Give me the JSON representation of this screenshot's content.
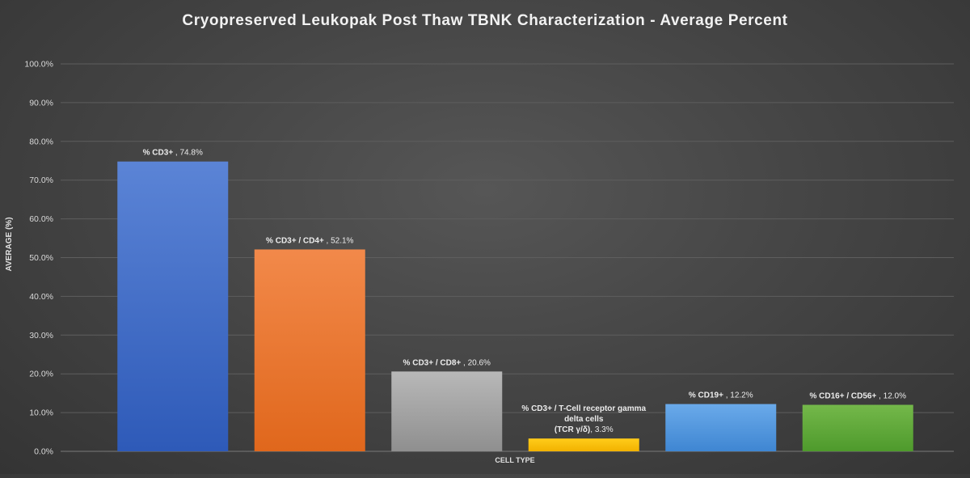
{
  "chart_data": {
    "type": "bar",
    "title": "Cryopreserved Leukopak Post Thaw TBNK Characterization  - Average Percent",
    "xlabel": "CELL TYPE",
    "ylabel": "AVERAGE (%)",
    "ylim": [
      0,
      100
    ],
    "yticks": [
      "0.0%",
      "10.0%",
      "20.0%",
      "30.0%",
      "40.0%",
      "50.0%",
      "60.0%",
      "70.0%",
      "80.0%",
      "90.0%",
      "100.0%"
    ],
    "grid": true,
    "categories": [
      "% CD3+",
      "% CD3+ / CD4+",
      "% CD3+ / CD8+",
      "% CD3+ / T-Cell receptor gamma delta cells (TCR γ/δ)",
      "% CD19+",
      "% CD16+ / CD56+"
    ],
    "values": [
      74.8,
      52.1,
      20.6,
      3.3,
      12.2,
      12.0
    ],
    "data_labels": [
      {
        "lines": [
          [
            "% CD3+",
            " , 74.8%"
          ]
        ]
      },
      {
        "lines": [
          [
            "% CD3+ / CD4+",
            " , 52.1%"
          ]
        ]
      },
      {
        "lines": [
          [
            "% CD3+ / CD8+",
            " , 20.6%"
          ]
        ]
      },
      {
        "lines": [
          [
            "% CD3+ / T-Cell receptor gamma",
            ""
          ],
          [
            "delta cells",
            ""
          ],
          [
            "(TCR γ/δ)",
            ", 3.3%"
          ]
        ]
      },
      {
        "lines": [
          [
            "% CD19+",
            " , 12.2%"
          ]
        ]
      },
      {
        "lines": [
          [
            "% CD16+ / CD56+",
            " , 12.0%"
          ]
        ]
      }
    ],
    "colors": [
      [
        "#5b84d6",
        "#2e5ab8"
      ],
      [
        "#f2894a",
        "#e0671c"
      ],
      [
        "#b8b8b8",
        "#8f8f8f"
      ],
      [
        "#ffcc1a",
        "#f2b200"
      ],
      [
        "#6aaaea",
        "#3f86d2"
      ],
      [
        "#74b84a",
        "#4e9a2c"
      ]
    ]
  }
}
